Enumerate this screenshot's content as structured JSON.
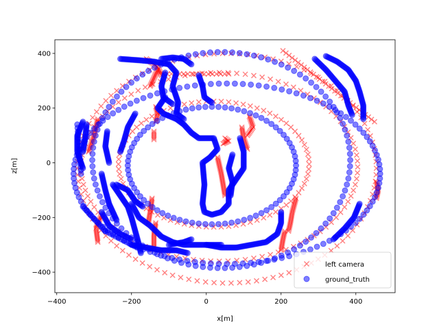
{
  "chart_data": {
    "type": "scatter",
    "title": "",
    "xlabel": "x[m]",
    "ylabel": "z[m]",
    "xlim": [
      -405,
      505
    ],
    "ylim": [
      -475,
      450
    ],
    "xticks": [
      -400,
      -200,
      0,
      200,
      400
    ],
    "yticks": [
      -400,
      -200,
      0,
      200,
      400
    ],
    "xtick_labels": [
      "−400",
      "−200",
      "0",
      "200",
      "400"
    ],
    "ytick_labels": [
      "−400",
      "−200",
      "0",
      "200",
      "400"
    ],
    "grid": false,
    "legend_position": "lower-right",
    "colors": {
      "left_camera": "#ff0000",
      "ground_truth": "#0000ff"
    },
    "series": [
      {
        "name": "left camera",
        "marker": "x",
        "alpha": 0.5,
        "loops": [
          {
            "cx": 55,
            "cy": -20,
            "rx": 400,
            "ry": 420,
            "t0": 0,
            "t1": 360,
            "n": 110
          },
          {
            "cx": 35,
            "cy": -15,
            "rx": 370,
            "ry": 345,
            "t0": 0,
            "t1": 360,
            "n": 100
          },
          {
            "cx": 20,
            "cy": -5,
            "rx": 255,
            "ry": 230,
            "t0": 0,
            "t1": 360,
            "n": 80
          }
        ],
        "runs": [
          {
            "from": [
              205,
              410
            ],
            "to": [
              450,
              150
            ],
            "n": 30
          },
          {
            "from": [
              -115,
              325
            ],
            "to": [
              60,
              325
            ],
            "n": 16
          },
          {
            "from": [
              -140,
              115
            ],
            "to": [
              -140,
              85
            ],
            "n": 5
          }
        ],
        "dense_segments": [
          [
            [
              -290,
              160
            ],
            [
              -300,
              100
            ],
            [
              -315,
              40
            ]
          ],
          [
            [
              -130,
              340
            ],
            [
              -140,
              310
            ],
            [
              -150,
              280
            ]
          ],
          [
            [
              -160,
              380
            ],
            [
              -130,
              350
            ],
            [
              -120,
              320
            ]
          ],
          [
            [
              -135,
              205
            ],
            [
              -130,
              180
            ],
            [
              -135,
              150
            ]
          ],
          [
            [
              -280,
              -190
            ],
            [
              -295,
              -240
            ],
            [
              -290,
              -290
            ]
          ],
          [
            [
              -145,
              -130
            ],
            [
              -150,
              -180
            ],
            [
              -155,
              -220
            ]
          ],
          [
            [
              -135,
              -220
            ],
            [
              -140,
              -260
            ],
            [
              -140,
              -310
            ]
          ],
          [
            [
              30,
              20
            ],
            [
              40,
              -40
            ],
            [
              50,
              -120
            ]
          ],
          [
            [
              95,
              130
            ],
            [
              100,
              90
            ],
            [
              110,
              50
            ]
          ],
          [
            [
              115,
              170
            ],
            [
              125,
              130
            ],
            [
              110,
              100
            ]
          ],
          [
            [
              240,
              -130
            ],
            [
              230,
              -180
            ],
            [
              225,
              -220
            ],
            [
              220,
              -250
            ]
          ],
          [
            [
              210,
              -250
            ],
            [
              205,
              -280
            ],
            [
              200,
              -320
            ]
          ],
          [
            [
              455,
              -70
            ],
            [
              460,
              -100
            ],
            [
              455,
              -130
            ]
          ],
          [
            [
              50,
              90
            ],
            [
              60,
              80
            ],
            [
              45,
              70
            ]
          ]
        ]
      },
      {
        "name": "ground_truth",
        "marker": "o",
        "alpha": 0.5,
        "loops": [
          {
            "cx": 55,
            "cy": -40,
            "rx": 410,
            "ry": 330,
            "t0": 0,
            "t1": 360,
            "n": 120
          },
          {
            "cx": 40,
            "cy": 10,
            "rx": 345,
            "ry": 395,
            "t0": 0,
            "t1": 360,
            "n": 110
          },
          {
            "cx": 15,
            "cy": -10,
            "rx": 225,
            "ry": 215,
            "t0": 0,
            "t1": 360,
            "n": 80
          }
        ],
        "runs": [
          {
            "from": [
              -345,
              140
            ],
            "to": [
              -335,
              -40
            ],
            "n": 14
          },
          {
            "from": [
              -330,
              -160
            ],
            "to": [
              -270,
              -250
            ],
            "n": 14
          },
          {
            "from": [
              -270,
              -250
            ],
            "to": [
              -185,
              -310
            ],
            "n": 12
          }
        ],
        "dense_segments": [
          [
            [
              -330,
              150
            ],
            [
              -345,
              100
            ],
            [
              -345,
              40
            ],
            [
              -330,
              -20
            ]
          ],
          [
            [
              -320,
              140
            ],
            [
              -325,
              80
            ],
            [
              -330,
              40
            ]
          ],
          [
            [
              -265,
              115
            ],
            [
              -270,
              60
            ],
            [
              -260,
              0
            ]
          ],
          [
            [
              -230,
              380
            ],
            [
              -180,
              375
            ],
            [
              -140,
              370
            ],
            [
              -100,
              360
            ],
            [
              -80,
              330
            ],
            [
              -90,
              280
            ],
            [
              -75,
              220
            ],
            [
              -80,
              180
            ],
            [
              -60,
              160
            ]
          ],
          [
            [
              -110,
              330
            ],
            [
              -120,
              280
            ],
            [
              -115,
              240
            ],
            [
              -90,
              215
            ]
          ],
          [
            [
              -110,
              240
            ],
            [
              -130,
              200
            ],
            [
              -115,
              180
            ],
            [
              -80,
              160
            ],
            [
              -60,
              140
            ],
            [
              -40,
              110
            ],
            [
              -20,
              90
            ],
            [
              20,
              90
            ],
            [
              30,
              50
            ],
            [
              10,
              20
            ],
            [
              -10,
              0
            ],
            [
              -5,
              -80
            ],
            [
              -10,
              -150
            ],
            [
              -5,
              -180
            ],
            [
              15,
              -190
            ],
            [
              40,
              -180
            ],
            [
              60,
              -150
            ],
            [
              60,
              -100
            ],
            [
              80,
              -60
            ],
            [
              100,
              -20
            ],
            [
              100,
              40
            ],
            [
              90,
              90
            ]
          ],
          [
            [
              70,
              30
            ],
            [
              60,
              -20
            ],
            [
              70,
              -70
            ],
            [
              65,
              -120
            ]
          ],
          [
            [
              -20,
              320
            ],
            [
              -10,
              280
            ],
            [
              -5,
              240
            ],
            [
              15,
              220
            ]
          ],
          [
            [
              -250,
              -80
            ],
            [
              -230,
              -120
            ],
            [
              -210,
              -160
            ],
            [
              -200,
              -200
            ],
            [
              -190,
              -250
            ],
            [
              -180,
              -300
            ],
            [
              -175,
              -330
            ]
          ],
          [
            [
              -280,
              -40
            ],
            [
              -270,
              -100
            ],
            [
              -260,
              -150
            ],
            [
              -240,
              -210
            ]
          ],
          [
            [
              -280,
              -180
            ],
            [
              -260,
              -230
            ],
            [
              -230,
              -260
            ],
            [
              -200,
              -280
            ]
          ],
          [
            [
              -240,
              -80
            ],
            [
              -210,
              -100
            ],
            [
              -190,
              -140
            ],
            [
              -170,
              -160
            ]
          ],
          [
            [
              -200,
              -150
            ],
            [
              -180,
              -200
            ],
            [
              -150,
              -230
            ],
            [
              -120,
              -270
            ],
            [
              -90,
              -290
            ],
            [
              -60,
              -300
            ],
            [
              -30,
              -300
            ],
            [
              0,
              -300
            ],
            [
              40,
              -300
            ]
          ],
          [
            [
              0,
              -300
            ],
            [
              40,
              -310
            ],
            [
              80,
              -310
            ],
            [
              120,
              -300
            ],
            [
              160,
              -290
            ],
            [
              190,
              -260
            ],
            [
              200,
              -220
            ],
            [
              200,
              -180
            ]
          ],
          [
            [
              -200,
              -300
            ],
            [
              -160,
              -310
            ],
            [
              -120,
              -320
            ],
            [
              -80,
              -320
            ],
            [
              -50,
              -330
            ]
          ],
          [
            [
              -100,
              -300
            ],
            [
              -60,
              -290
            ],
            [
              -40,
              -280
            ]
          ],
          [
            [
              320,
              390
            ],
            [
              350,
              370
            ],
            [
              380,
              340
            ],
            [
              400,
              300
            ],
            [
              410,
              260
            ],
            [
              420,
              210
            ],
            [
              420,
              160
            ]
          ],
          [
            [
              290,
              380
            ],
            [
              320,
              340
            ],
            [
              345,
              300
            ],
            [
              370,
              260
            ],
            [
              380,
              210
            ],
            [
              390,
              175
            ]
          ],
          [
            [
              410,
              -150
            ],
            [
              395,
              -200
            ],
            [
              370,
              -240
            ],
            [
              340,
              -280
            ]
          ],
          [
            [
              -190,
              180
            ],
            [
              -210,
              130
            ],
            [
              -220,
              80
            ],
            [
              -230,
              40
            ]
          ],
          [
            [
              -120,
              380
            ],
            [
              -90,
              385
            ],
            [
              -60,
              380
            ],
            [
              -40,
              360
            ]
          ]
        ]
      }
    ]
  }
}
